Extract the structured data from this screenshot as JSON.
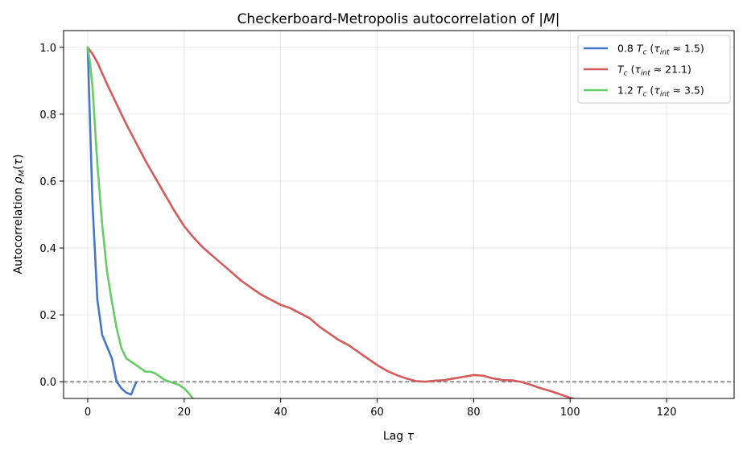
{
  "chart_data": {
    "type": "line",
    "title": "Checkerboard-Metropolis autocorrelation of |M|",
    "xlabel": "Lag τ",
    "ylabel": "Autocorrelation ρ_M(τ)",
    "xlim": [
      -5,
      134
    ],
    "ylim": [
      -0.05,
      1.05
    ],
    "xticks": [
      0,
      20,
      40,
      60,
      80,
      100,
      120
    ],
    "yticks": [
      0.0,
      0.2,
      0.4,
      0.6,
      0.8,
      1.0
    ],
    "grid": true,
    "legend_position": "top-right",
    "reference_line": {
      "y": 0.0,
      "style": "dashed",
      "color": "#666666"
    },
    "series": [
      {
        "name": "0.8 T_c  (τ_int ≈ 1.5)",
        "color": "#4477cc",
        "x": [
          0,
          1,
          2,
          3,
          4,
          5,
          6,
          7,
          8,
          9,
          10
        ],
        "y": [
          1.0,
          0.53,
          0.245,
          0.14,
          0.105,
          0.07,
          0.0,
          -0.02,
          -0.033,
          -0.038,
          -0.003
        ]
      },
      {
        "name": "T_c  (τ_int ≈ 21.1)",
        "color": "#d45b5b",
        "x": [
          0,
          1,
          2,
          4,
          6,
          8,
          10,
          12,
          14,
          16,
          18,
          20,
          22,
          24,
          26,
          28,
          30,
          32,
          34,
          36,
          38,
          40,
          42,
          44,
          46,
          48,
          50,
          52,
          54,
          56,
          58,
          60,
          62,
          64,
          66,
          68,
          70,
          72,
          74,
          76,
          78,
          80,
          82,
          84,
          86,
          88,
          90,
          92,
          94,
          96,
          98,
          100,
          102
        ],
        "y": [
          1.0,
          0.98,
          0.955,
          0.89,
          0.83,
          0.77,
          0.715,
          0.66,
          0.61,
          0.56,
          0.51,
          0.465,
          0.43,
          0.4,
          0.375,
          0.35,
          0.325,
          0.3,
          0.28,
          0.26,
          0.245,
          0.23,
          0.22,
          0.205,
          0.19,
          0.165,
          0.145,
          0.125,
          0.11,
          0.09,
          0.07,
          0.05,
          0.033,
          0.02,
          0.01,
          0.002,
          0.0,
          0.003,
          0.005,
          0.01,
          0.015,
          0.02,
          0.018,
          0.01,
          0.005,
          0.004,
          -0.001,
          -0.01,
          -0.02,
          -0.028,
          -0.038,
          -0.048,
          -0.056
        ]
      },
      {
        "name": "1.2 T_c  (τ_int ≈ 3.5)",
        "color": "#66cc66",
        "x": [
          0,
          0.5,
          1,
          2,
          3,
          4,
          5,
          6,
          7,
          8,
          9,
          10,
          11,
          12,
          13,
          14,
          15,
          16,
          17,
          18,
          19,
          20,
          21,
          22
        ],
        "y": [
          1.0,
          0.95,
          0.88,
          0.65,
          0.47,
          0.33,
          0.24,
          0.16,
          0.1,
          0.07,
          0.06,
          0.05,
          0.04,
          0.03,
          0.03,
          0.025,
          0.015,
          0.005,
          0.0,
          -0.005,
          -0.01,
          -0.02,
          -0.035,
          -0.055
        ]
      }
    ]
  }
}
